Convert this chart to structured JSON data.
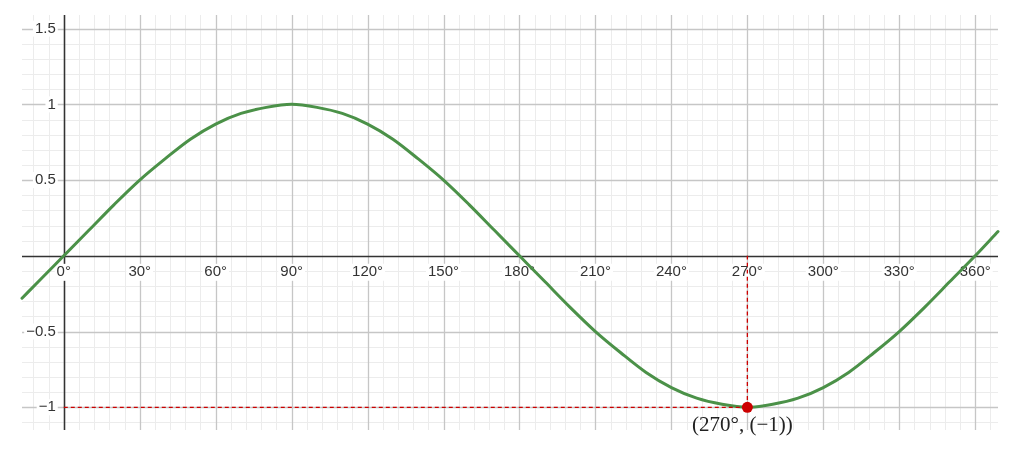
{
  "chart_data": {
    "type": "line",
    "xlim": [
      -16.5,
      369
    ],
    "ylim": [
      -1.15,
      1.59
    ],
    "xticks": [
      {
        "value": -12,
        "label": null
      },
      {
        "value": -6,
        "label": null
      },
      {
        "value": 0,
        "label": "0°"
      },
      {
        "value": 6,
        "label": null
      },
      {
        "value": 12,
        "label": null
      },
      {
        "value": 18,
        "label": null
      },
      {
        "value": 24,
        "label": null
      },
      {
        "value": 30,
        "label": "30°"
      },
      {
        "value": 36,
        "label": null
      },
      {
        "value": 42,
        "label": null
      },
      {
        "value": 48,
        "label": null
      },
      {
        "value": 54,
        "label": null
      },
      {
        "value": 60,
        "label": "60°"
      },
      {
        "value": 66,
        "label": null
      },
      {
        "value": 72,
        "label": null
      },
      {
        "value": 78,
        "label": null
      },
      {
        "value": 84,
        "label": null
      },
      {
        "value": 90,
        "label": "90°"
      },
      {
        "value": 96,
        "label": null
      },
      {
        "value": 102,
        "label": null
      },
      {
        "value": 108,
        "label": null
      },
      {
        "value": 114,
        "label": null
      },
      {
        "value": 120,
        "label": "120°"
      },
      {
        "value": 126,
        "label": null
      },
      {
        "value": 132,
        "label": null
      },
      {
        "value": 138,
        "label": null
      },
      {
        "value": 144,
        "label": null
      },
      {
        "value": 150,
        "label": "150°"
      },
      {
        "value": 156,
        "label": null
      },
      {
        "value": 162,
        "label": null
      },
      {
        "value": 168,
        "label": null
      },
      {
        "value": 174,
        "label": null
      },
      {
        "value": 180,
        "label": "180°"
      },
      {
        "value": 186,
        "label": null
      },
      {
        "value": 192,
        "label": null
      },
      {
        "value": 198,
        "label": null
      },
      {
        "value": 204,
        "label": null
      },
      {
        "value": 210,
        "label": "210°"
      },
      {
        "value": 216,
        "label": null
      },
      {
        "value": 222,
        "label": null
      },
      {
        "value": 228,
        "label": null
      },
      {
        "value": 234,
        "label": null
      },
      {
        "value": 240,
        "label": "240°"
      },
      {
        "value": 246,
        "label": null
      },
      {
        "value": 252,
        "label": null
      },
      {
        "value": 258,
        "label": null
      },
      {
        "value": 264,
        "label": null
      },
      {
        "value": 270,
        "label": "270°"
      },
      {
        "value": 276,
        "label": null
      },
      {
        "value": 282,
        "label": null
      },
      {
        "value": 288,
        "label": null
      },
      {
        "value": 294,
        "label": null
      },
      {
        "value": 300,
        "label": "300°"
      },
      {
        "value": 306,
        "label": null
      },
      {
        "value": 312,
        "label": null
      },
      {
        "value": 318,
        "label": null
      },
      {
        "value": 324,
        "label": null
      },
      {
        "value": 330,
        "label": "330°"
      },
      {
        "value": 336,
        "label": null
      },
      {
        "value": 342,
        "label": null
      },
      {
        "value": 348,
        "label": null
      },
      {
        "value": 354,
        "label": null
      },
      {
        "value": 360,
        "label": "360°"
      },
      {
        "value": 366,
        "label": null
      }
    ],
    "yticks": [
      {
        "value": -1.1,
        "label": null
      },
      {
        "value": -1,
        "label": "−1"
      },
      {
        "value": -0.9,
        "label": null
      },
      {
        "value": -0.8,
        "label": null
      },
      {
        "value": -0.7,
        "label": null
      },
      {
        "value": -0.6,
        "label": null
      },
      {
        "value": -0.5,
        "label": "−0.5"
      },
      {
        "value": -0.4,
        "label": null
      },
      {
        "value": -0.3,
        "label": null
      },
      {
        "value": -0.2,
        "label": null
      },
      {
        "value": -0.1,
        "label": null
      },
      {
        "value": 0,
        "label": null
      },
      {
        "value": 0.1,
        "label": null
      },
      {
        "value": 0.2,
        "label": null
      },
      {
        "value": 0.3,
        "label": null
      },
      {
        "value": 0.4,
        "label": null
      },
      0.5,
      {
        "value": 0.6,
        "label": null
      },
      {
        "value": 0.7,
        "label": null
      },
      {
        "value": 0.8,
        "label": null
      },
      {
        "value": 0.9,
        "label": null
      },
      1,
      {
        "value": 1.1,
        "label": null
      },
      {
        "value": 1.2,
        "label": null
      },
      {
        "value": 1.3,
        "label": null
      },
      {
        "value": 1.4,
        "label": null
      },
      1.5
    ],
    "grid": true,
    "series": [
      {
        "color": "#4b9148",
        "x": [
          -16.5,
          -10,
          0,
          10,
          20,
          30,
          40,
          50,
          60,
          70,
          80,
          90,
          100,
          110,
          120,
          130,
          140,
          150,
          160,
          170,
          180,
          190,
          200,
          210,
          220,
          230,
          240,
          250,
          260,
          270,
          280,
          290,
          300,
          310,
          320,
          330,
          340,
          350,
          360,
          369
        ],
        "values": [
          -0.28,
          -0.17,
          0,
          0.17,
          0.34,
          0.5,
          0.64,
          0.77,
          0.87,
          0.94,
          0.98,
          1,
          0.98,
          0.94,
          0.87,
          0.77,
          0.64,
          0.5,
          0.34,
          0.17,
          0,
          -0.17,
          -0.34,
          -0.5,
          -0.64,
          -0.77,
          -0.87,
          -0.94,
          -0.98,
          -1,
          -0.98,
          -0.94,
          -0.87,
          -0.77,
          -0.64,
          -0.5,
          -0.34,
          -0.17,
          0,
          0.16
        ]
      },
      {
        "type": "line",
        "color": "#cc0000",
        "line_style": "dashed",
        "x": [
          0,
          270
        ],
        "values": [
          -1,
          -1
        ]
      },
      {
        "type": "line",
        "color": "#cc0000",
        "line_style": "dashed",
        "x": [
          270,
          270
        ],
        "values": [
          0,
          -1
        ]
      },
      {
        "type": "scatter",
        "color": "#cc0000",
        "marker": "circle",
        "x": [
          270
        ],
        "values": [
          -1
        ]
      }
    ],
    "annotations": [
      {
        "text": "(270°, (−1))",
        "x": 270,
        "y": -1
      }
    ]
  }
}
